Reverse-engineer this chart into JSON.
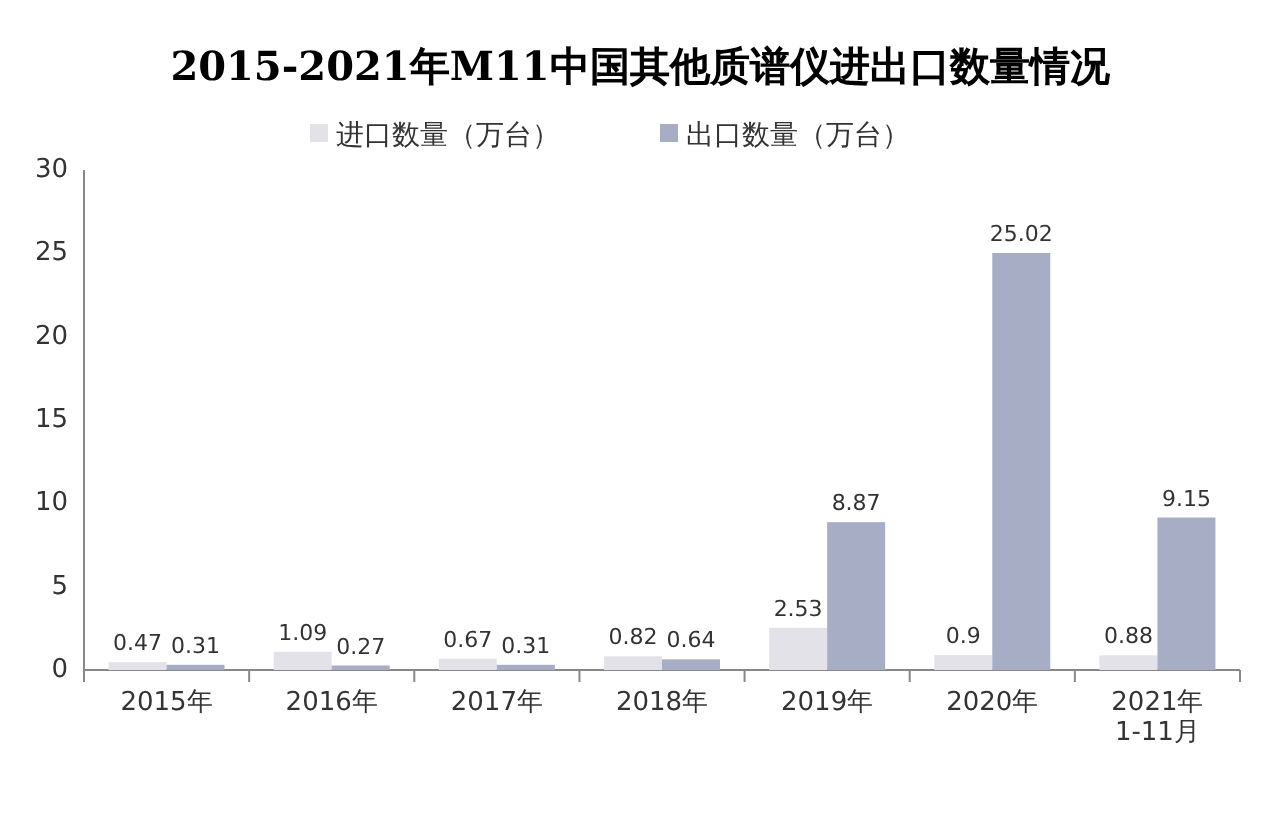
{
  "chart_data": {
    "type": "bar",
    "title": "2015-2021年M11中国其他质谱仪进出口数量情况",
    "categories": [
      "2015年",
      "2016年",
      "2017年",
      "2018年",
      "2019年",
      "2020年",
      "2021年\n1-11月"
    ],
    "series": [
      {
        "name": "进口数量（万台）",
        "color": "#e2e2e8",
        "values": [
          0.47,
          1.09,
          0.67,
          0.82,
          2.53,
          0.9,
          0.88
        ]
      },
      {
        "name": "出口数量（万台）",
        "color": "#a8adc6",
        "values": [
          0.31,
          0.27,
          0.31,
          0.64,
          8.87,
          25.02,
          9.15
        ]
      }
    ],
    "ylim": [
      0,
      30
    ],
    "yticks": [
      0,
      5,
      10,
      15,
      20,
      25,
      30
    ],
    "data_labels": true,
    "legend": "top",
    "grid": false
  }
}
